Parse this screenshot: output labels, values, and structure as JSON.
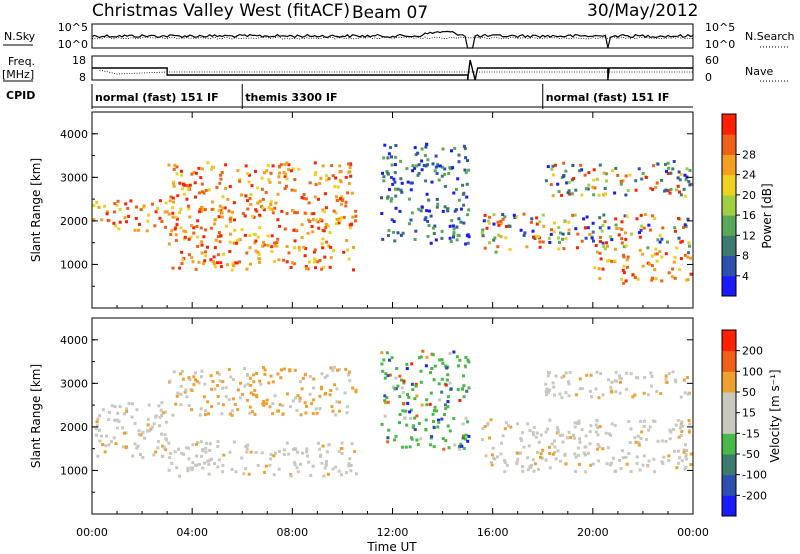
{
  "header": {
    "title": "Christmas Valley West (fitACF)",
    "beam": "Beam 07",
    "date": "30/May/2012"
  },
  "top_panels": {
    "nsky_label": "N.Sky",
    "nsearch_label": "N.Search",
    "nsky_ticks": [
      "10^5",
      "10^0"
    ],
    "nsky_right_ticks": [
      "10^5",
      "10^0"
    ],
    "freq_label_1": "Freq.",
    "freq_label_2": "[MHz]",
    "freq_ticks": [
      "18",
      "8"
    ],
    "nave_ticks": [
      "60",
      "0"
    ],
    "nave_label": "Nave",
    "cpid_label": "CPID"
  },
  "cpid_segments": [
    {
      "label": "normal (fast) 151 IF",
      "start": 0,
      "end": 6
    },
    {
      "label": "themis 3300 IF",
      "start": 6,
      "end": 18
    },
    {
      "label": "normal (fast) 151 IF",
      "start": 18,
      "end": 24
    }
  ],
  "colors": {
    "power": [
      "#1a1aff",
      "#2c4fb0",
      "#3c7a6e",
      "#58a858",
      "#a0d040",
      "#f0d020",
      "#f5a020",
      "#f06018",
      "#ff2000"
    ],
    "velocity": [
      "#1a1aff",
      "#2c4fb0",
      "#3c7a6e",
      "#48b848",
      "#c8c8c0",
      "#c8c8c0",
      "#f0a030",
      "#f06018",
      "#ff2000"
    ]
  },
  "chart_data": [
    {
      "type": "heatmap",
      "name": "power",
      "xlabel": "",
      "ylabel": "Slant Range [km]",
      "ylim": [
        0,
        4500
      ],
      "yticks": [
        "1000",
        "2000",
        "3000",
        "4000"
      ],
      "colorbar_label": "Power [dB]",
      "colorbar_ticks": [
        "4",
        "8",
        "12",
        "16",
        "20",
        "24",
        "28"
      ],
      "features": [
        {
          "x": [
            0.0,
            3.0
          ],
          "y": [
            1800,
            2500
          ],
          "level": "high"
        },
        {
          "x": [
            3.0,
            10.5
          ],
          "y": [
            2200,
            3400
          ],
          "level": "high"
        },
        {
          "x": [
            3.0,
            10.5
          ],
          "y": [
            900,
            2300
          ],
          "level": "high"
        },
        {
          "x": [
            11.5,
            15.0
          ],
          "y": [
            1500,
            3800
          ],
          "level": "low"
        },
        {
          "x": [
            15.5,
            24.0
          ],
          "y": [
            1300,
            2200
          ],
          "level": "mixed"
        },
        {
          "x": [
            18.0,
            24.0
          ],
          "y": [
            2600,
            3400
          ],
          "level": "mixed"
        },
        {
          "x": [
            20.0,
            24.0
          ],
          "y": [
            600,
            1300
          ],
          "level": "high"
        }
      ]
    },
    {
      "type": "heatmap",
      "name": "velocity",
      "xlabel": "Time UT",
      "ylabel": "Slant Range [km]",
      "ylim": [
        0,
        4500
      ],
      "yticks": [
        "1000",
        "2000",
        "3000",
        "4000"
      ],
      "xticks": [
        "00:00",
        "04:00",
        "08:00",
        "12:00",
        "16:00",
        "20:00",
        "00:00"
      ],
      "colorbar_label": "Velocity [m s⁻¹]",
      "colorbar_ticks": [
        "200",
        "100",
        "50",
        "15",
        "-15",
        "-50",
        "-100",
        "-200"
      ],
      "features": [
        {
          "x": [
            0.0,
            3.0
          ],
          "y": [
            1300,
            2600
          ],
          "level": "ground"
        },
        {
          "x": [
            3.0,
            10.5
          ],
          "y": [
            900,
            1700
          ],
          "level": "ground"
        },
        {
          "x": [
            3.0,
            10.5
          ],
          "y": [
            2300,
            3400
          ],
          "level": "away"
        },
        {
          "x": [
            11.5,
            15.0
          ],
          "y": [
            1500,
            3800
          ],
          "level": "toward"
        },
        {
          "x": [
            15.5,
            24.0
          ],
          "y": [
            1000,
            2200
          ],
          "level": "ground"
        },
        {
          "x": [
            18.0,
            24.0
          ],
          "y": [
            2700,
            3300
          ],
          "level": "ground"
        }
      ]
    }
  ]
}
